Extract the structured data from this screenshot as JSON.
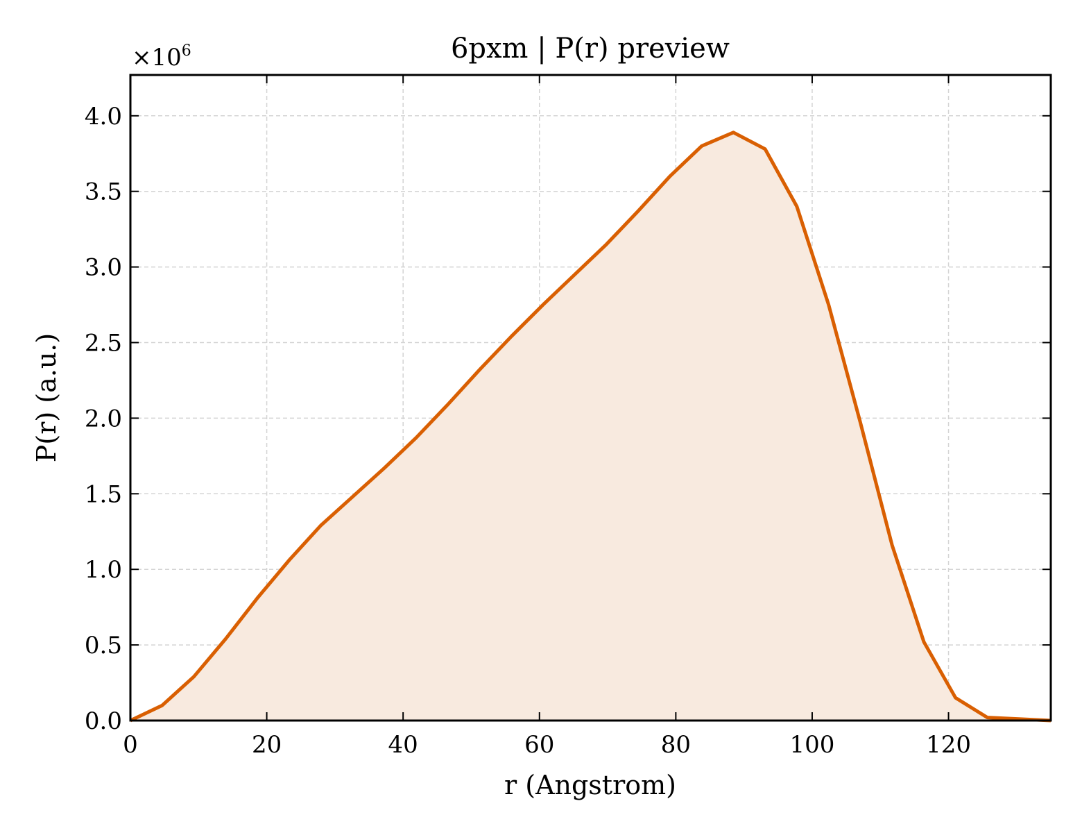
{
  "chart_data": {
    "type": "area",
    "title": "6pxm | P(r) preview",
    "xlabel": "r (Angstrom)",
    "ylabel": "P(r) (a.u.)",
    "y_offset_label": "×10",
    "y_offset_exponent": "6",
    "y_scale": 1000000,
    "xlim": [
      0,
      135
    ],
    "ylim": [
      0,
      4.27
    ],
    "xticks": [
      0,
      20,
      40,
      60,
      80,
      100,
      120
    ],
    "xtick_labels": [
      "0",
      "20",
      "40",
      "60",
      "80",
      "100",
      "120"
    ],
    "yticks": [
      0.0,
      0.5,
      1.0,
      1.5,
      2.0,
      2.5,
      3.0,
      3.5,
      4.0
    ],
    "ytick_labels": [
      "0.0",
      "0.5",
      "1.0",
      "1.5",
      "2.0",
      "2.5",
      "3.0",
      "3.5",
      "4.0"
    ],
    "grid": true,
    "line_color": "#d95f02",
    "fill_color": "#f8eadf",
    "series": [
      {
        "x": [
          0,
          4.66,
          9.31,
          13.97,
          18.62,
          23.28,
          27.93,
          32.59,
          37.24,
          41.9,
          46.55,
          51.21,
          55.86,
          60.52,
          65.17,
          69.83,
          74.48,
          79.14,
          83.79,
          88.45,
          93.1,
          97.76,
          102.41,
          107.07,
          111.72,
          116.38,
          121.03,
          125.69,
          130.34,
          135.0
        ],
        "y": [
          0.0,
          0.1,
          0.29,
          0.54,
          0.81,
          1.06,
          1.29,
          1.48,
          1.67,
          1.87,
          2.09,
          2.32,
          2.54,
          2.75,
          2.95,
          3.15,
          3.37,
          3.6,
          3.8,
          3.89,
          3.78,
          3.4,
          2.75,
          1.97,
          1.16,
          0.52,
          0.15,
          0.02,
          0.01,
          0.0
        ]
      }
    ]
  }
}
